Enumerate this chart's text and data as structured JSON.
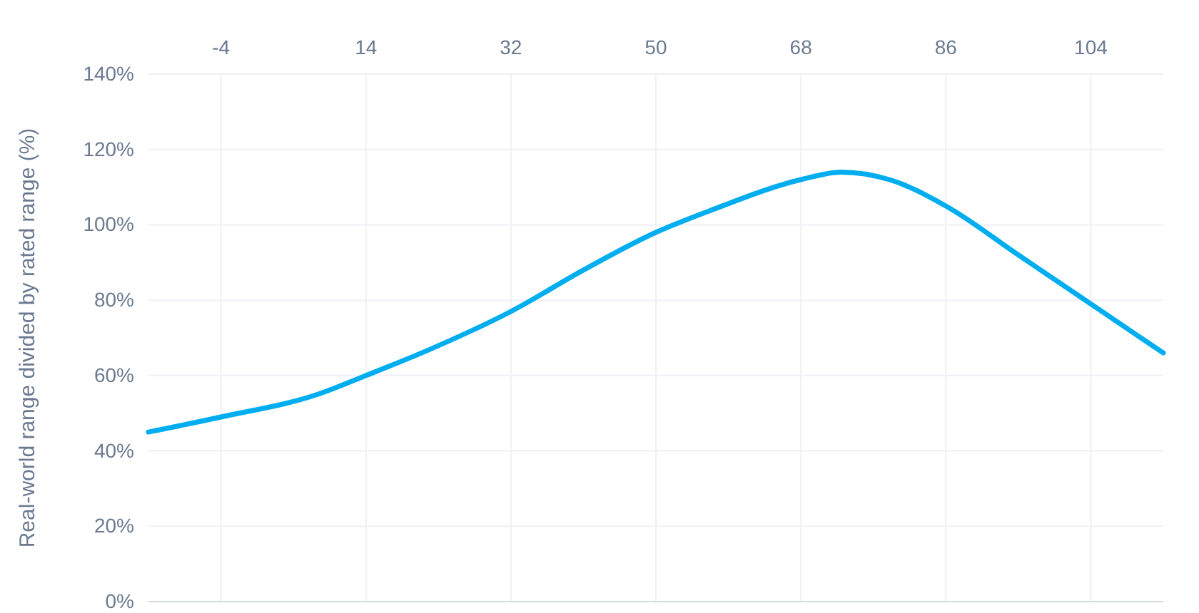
{
  "chart_data": {
    "type": "line",
    "ylabel": "Real-world range divided by rated range (%)",
    "x": [
      -13,
      -4,
      8,
      14,
      22,
      32,
      41,
      50,
      57,
      68,
      73,
      79,
      86,
      95,
      104,
      113
    ],
    "series": [
      {
        "color": "#00aeef",
        "values": [
          45,
          49,
          55,
          60,
          67,
          77,
          88,
          98,
          104,
          112,
          114,
          112,
          105,
          92,
          79,
          66
        ]
      }
    ],
    "xlim": [
      -13,
      113
    ],
    "xticks": [
      -4,
      14,
      32,
      50,
      68,
      86,
      104
    ],
    "ylim": [
      0,
      140
    ],
    "yticks": [
      {
        "value": 0,
        "label": "0%"
      },
      {
        "value": 20,
        "label": "20%"
      },
      {
        "value": 40,
        "label": "40%"
      },
      {
        "value": 60,
        "label": "60%"
      },
      {
        "value": 80,
        "label": "80%"
      },
      {
        "value": 100,
        "label": "100%"
      },
      {
        "value": 120,
        "label": "120%"
      },
      {
        "value": 140,
        "label": "140%"
      }
    ],
    "grid": true,
    "marker": "none",
    "line_style": "solid"
  }
}
